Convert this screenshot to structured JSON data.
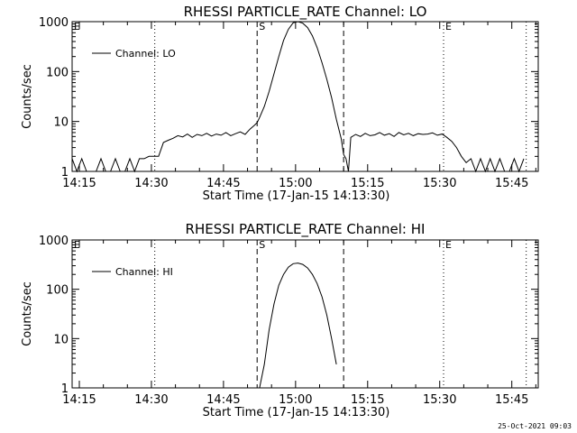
{
  "footer": {
    "timestamp": "25-Oct-2021 09:03"
  },
  "chart_data": [
    {
      "type": "line",
      "title": "RHESSI PARTICLE_RATE Channel: LO",
      "xlabel": "Start Time (17-Jan-15 14:13:30)",
      "ylabel": "Counts/sec",
      "y_scale": "log",
      "ylim": [
        1,
        1000
      ],
      "yticks": [
        "1",
        "10",
        "100",
        "1000"
      ],
      "xlim_minutes": [
        0,
        97
      ],
      "xticks": [
        "14:15",
        "14:30",
        "14:45",
        "15:00",
        "15:15",
        "15:30",
        "15:45"
      ],
      "legend": "Channel: LO",
      "legend_placement": "top-left",
      "markers": [
        {
          "label": "S",
          "minute": 38.5,
          "style": "dashed"
        },
        {
          "label": "",
          "minute": 56.5,
          "style": "dashed"
        },
        {
          "label": "",
          "minute": 17.2,
          "style": "dotted"
        },
        {
          "label": "E",
          "minute": 77.3,
          "style": "dotted"
        },
        {
          "label": "",
          "minute": 94.5,
          "style": "dotted"
        }
      ],
      "series": [
        {
          "name": "Channel: LO",
          "x": [
            0,
            1,
            2,
            3,
            4,
            5,
            6,
            7,
            8,
            9,
            10,
            11,
            12,
            13,
            14,
            15,
            16,
            17,
            18,
            19,
            20,
            21,
            22,
            23,
            24,
            25,
            26,
            27,
            28,
            29,
            30,
            31,
            32,
            33,
            34,
            35,
            36,
            37,
            38,
            38.5,
            39,
            40,
            41,
            42,
            43,
            44,
            45,
            46,
            47,
            48,
            49,
            50,
            51,
            52,
            53,
            54,
            55,
            56,
            56.5,
            57,
            57.5,
            58,
            59,
            60,
            61,
            62,
            63,
            64,
            65,
            66,
            67,
            68,
            69,
            70,
            71,
            72,
            73,
            74,
            75,
            76,
            77,
            78,
            79,
            80,
            81,
            82,
            83,
            84,
            85,
            86,
            87,
            88,
            89,
            90,
            91,
            92,
            93,
            94
          ],
          "y": [
            1.8,
            1,
            1.8,
            1,
            1,
            1,
            1.8,
            1,
            1,
            1.8,
            1,
            1,
            1.8,
            1,
            1.8,
            1.8,
            2,
            2,
            2,
            3.8,
            4.2,
            4.6,
            5.2,
            4.9,
            5.6,
            4.8,
            5.5,
            5.2,
            5.8,
            5.1,
            5.6,
            5.3,
            6.0,
            5.2,
            5.7,
            6.2,
            5.5,
            7.0,
            8.5,
            9.5,
            12,
            20,
            40,
            90,
            200,
            420,
            700,
            950,
            1000,
            930,
            760,
            520,
            300,
            150,
            70,
            30,
            11,
            4.5,
            2.2,
            1.8,
            1,
            4.8,
            5.5,
            5.0,
            5.8,
            5.2,
            5.4,
            6.0,
            5.3,
            5.7,
            5.0,
            6.0,
            5.4,
            5.8,
            5.2,
            5.7,
            5.5,
            5.6,
            5.9,
            5.3,
            5.6,
            4.8,
            4.0,
            3.0,
            2.0,
            1.5,
            1.8,
            1,
            1.8,
            1,
            1.8,
            1,
            1.8,
            1,
            1,
            1.8,
            1,
            1.8
          ]
        }
      ]
    },
    {
      "type": "line",
      "title": "RHESSI PARTICLE_RATE Channel: HI",
      "xlabel": "Start Time (17-Jan-15 14:13:30)",
      "ylabel": "Counts/sec",
      "y_scale": "log",
      "ylim": [
        1,
        1000
      ],
      "yticks": [
        "1",
        "10",
        "100",
        "1000"
      ],
      "xlim_minutes": [
        0,
        97
      ],
      "xticks": [
        "14:15",
        "14:30",
        "14:45",
        "15:00",
        "15:15",
        "15:30",
        "15:45"
      ],
      "legend": "Channel: HI",
      "legend_placement": "top-left",
      "markers": [
        {
          "label": "S",
          "minute": 38.5,
          "style": "dashed"
        },
        {
          "label": "",
          "minute": 56.5,
          "style": "dashed"
        },
        {
          "label": "",
          "minute": 17.2,
          "style": "dotted"
        },
        {
          "label": "E",
          "minute": 77.3,
          "style": "dotted"
        },
        {
          "label": "",
          "minute": 94.5,
          "style": "dotted"
        }
      ],
      "series": [
        {
          "name": "Channel: HI",
          "x": [
            39,
            40,
            41,
            42,
            43,
            44,
            45,
            46,
            47,
            48,
            49,
            50,
            51,
            52,
            53,
            54,
            55
          ],
          "y": [
            1,
            3,
            15,
            50,
            120,
            200,
            280,
            330,
            340,
            320,
            270,
            200,
            130,
            70,
            30,
            10,
            3
          ]
        }
      ]
    }
  ]
}
